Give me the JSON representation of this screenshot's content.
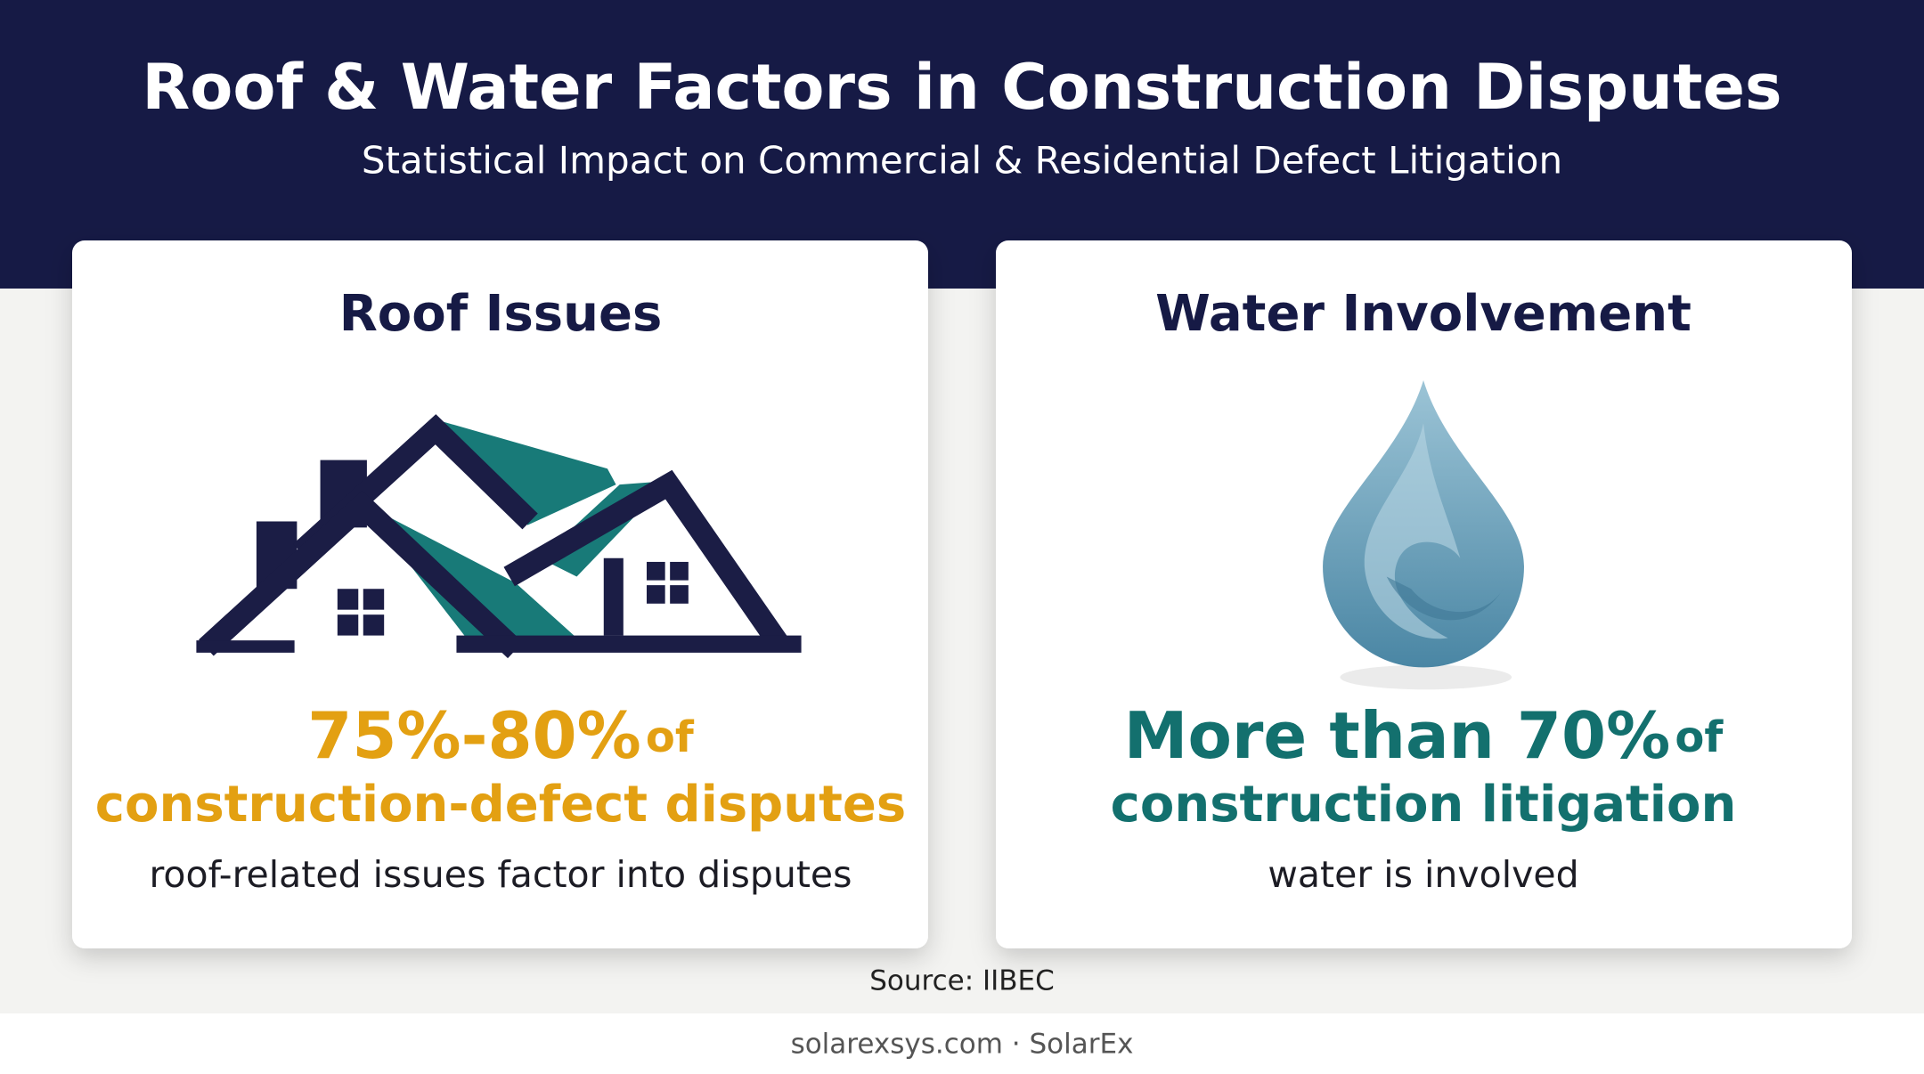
{
  "header": {
    "title": "Roof & Water Factors in Construction Disputes",
    "subtitle": "Statistical Impact on Commercial & Residential Defect Litigation"
  },
  "cards": [
    {
      "title": "Roof Issues",
      "stat": "75%-80%",
      "stat_suffix": "of",
      "stat_line2": "construction-defect disputes",
      "caption": "roof-related issues factor into disputes"
    },
    {
      "title": "Water Involvement",
      "stat": "More than 70%",
      "stat_suffix": "of",
      "stat_line2": "construction litigation",
      "caption": "water is involved"
    }
  ],
  "source": "Source: IIBEC",
  "footer": "solarexsys.com · SolarEx"
}
